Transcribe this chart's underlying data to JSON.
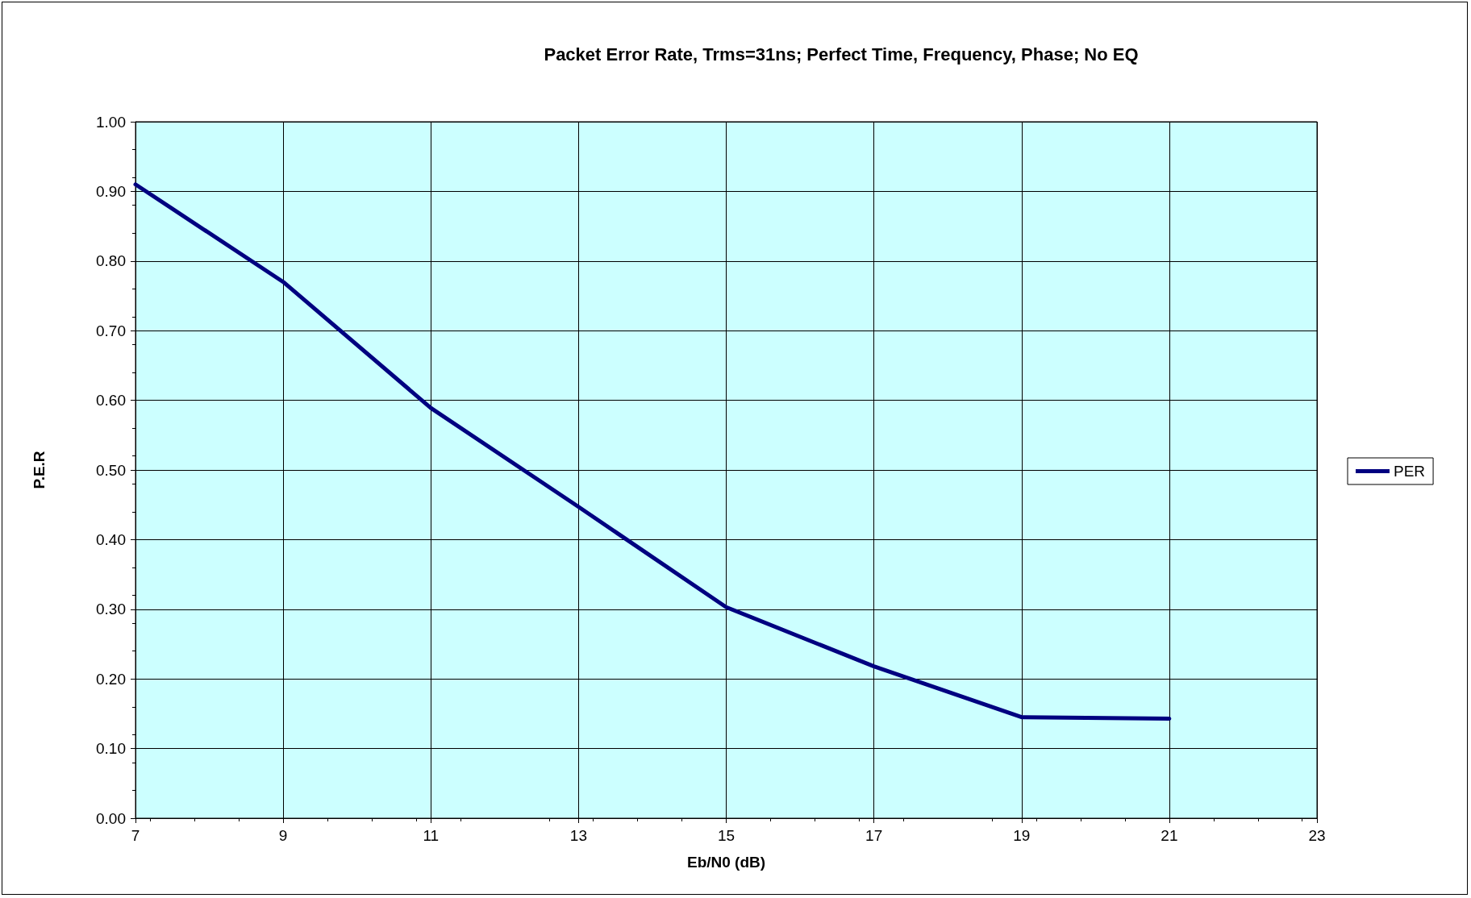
{
  "chart_data": {
    "type": "line",
    "title": "Packet Error Rate, Trms=31ns; Perfect Time, Frequency, Phase; No EQ",
    "xlabel": "Eb/N0 (dB)",
    "ylabel": "P.E.R",
    "x": [
      7,
      9,
      11,
      13,
      15,
      17,
      19,
      21
    ],
    "series": [
      {
        "name": "PER",
        "color": "#000080",
        "values": [
          0.91,
          0.77,
          0.589,
          0.447,
          0.303,
          0.218,
          0.145,
          0.143
        ]
      }
    ],
    "xlim": [
      7,
      23
    ],
    "xticks": [
      7,
      9,
      11,
      13,
      15,
      17,
      19,
      21,
      23
    ],
    "ylim": [
      0,
      1
    ],
    "yticks": [
      {
        "value": 0,
        "label": "0.00"
      },
      {
        "value": 0.1,
        "label": "0.10"
      },
      {
        "value": 0.2,
        "label": "0.20"
      },
      {
        "value": 0.3,
        "label": "0.30"
      },
      {
        "value": 0.4,
        "label": "0.40"
      },
      {
        "value": 0.5,
        "label": "0.50"
      },
      {
        "value": 0.6,
        "label": "0.60"
      },
      {
        "value": 0.7,
        "label": "0.70"
      },
      {
        "value": 0.8,
        "label": "0.80"
      },
      {
        "value": 0.9,
        "label": "0.90"
      },
      {
        "value": 1,
        "label": "1.00"
      }
    ],
    "grid": true,
    "legend": "right",
    "marker": "none",
    "line_style": "solid"
  }
}
